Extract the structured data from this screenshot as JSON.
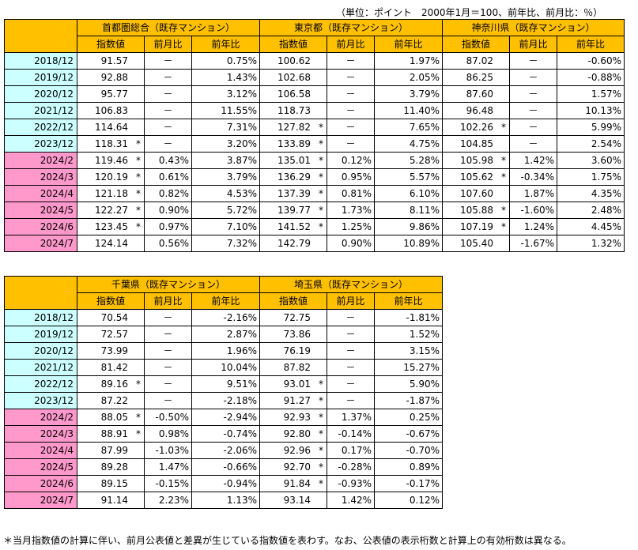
{
  "unit_note": "（単位：ポイント　2000年1月＝100、前年比、前月比：％）",
  "sub_headers": [
    "指数値",
    "前月比",
    "前年比"
  ],
  "table1": {
    "regions": [
      "首都圏総合（既存マンション）",
      "東京都（既存マンション）",
      "神奈川県（既存マンション）"
    ],
    "rows": [
      {
        "label": "2018/12",
        "type": "annual",
        "cells": [
          [
            "91.57",
            "",
            "－",
            "0.75%"
          ],
          [
            "100.62",
            "",
            "－",
            "1.97%"
          ],
          [
            "87.02",
            "",
            "－",
            "-0.60%"
          ]
        ]
      },
      {
        "label": "2019/12",
        "type": "annual",
        "cells": [
          [
            "92.88",
            "",
            "－",
            "1.43%"
          ],
          [
            "102.68",
            "",
            "－",
            "2.05%"
          ],
          [
            "86.25",
            "",
            "－",
            "-0.88%"
          ]
        ]
      },
      {
        "label": "2020/12",
        "type": "annual",
        "cells": [
          [
            "95.77",
            "",
            "－",
            "3.12%"
          ],
          [
            "106.58",
            "",
            "－",
            "3.79%"
          ],
          [
            "87.60",
            "",
            "－",
            "1.57%"
          ]
        ]
      },
      {
        "label": "2021/12",
        "type": "annual",
        "cells": [
          [
            "106.83",
            "",
            "－",
            "11.55%"
          ],
          [
            "118.73",
            "",
            "－",
            "11.40%"
          ],
          [
            "96.48",
            "",
            "－",
            "10.13%"
          ]
        ]
      },
      {
        "label": "2022/12",
        "type": "annual",
        "cells": [
          [
            "114.64",
            "",
            "－",
            "7.31%"
          ],
          [
            "127.82",
            "*",
            "－",
            "7.65%"
          ],
          [
            "102.26",
            "*",
            "－",
            "5.99%"
          ]
        ]
      },
      {
        "label": "2023/12",
        "type": "annual",
        "cells": [
          [
            "118.31",
            "*",
            "－",
            "3.20%"
          ],
          [
            "133.89",
            "*",
            "－",
            "4.75%"
          ],
          [
            "104.85",
            "",
            "－",
            "2.54%"
          ]
        ]
      },
      {
        "label": "2024/2",
        "type": "monthly",
        "cells": [
          [
            "119.46",
            "*",
            "0.43%",
            "3.87%"
          ],
          [
            "135.01",
            "*",
            "0.12%",
            "5.28%"
          ],
          [
            "105.98",
            "*",
            "1.42%",
            "3.60%"
          ]
        ]
      },
      {
        "label": "2024/3",
        "type": "monthly",
        "cells": [
          [
            "120.19",
            "*",
            "0.61%",
            "3.79%"
          ],
          [
            "136.29",
            "*",
            "0.95%",
            "5.57%"
          ],
          [
            "105.62",
            "*",
            "-0.34%",
            "1.75%"
          ]
        ]
      },
      {
        "label": "2024/4",
        "type": "monthly",
        "cells": [
          [
            "121.18",
            "*",
            "0.82%",
            "4.53%"
          ],
          [
            "137.39",
            "*",
            "0.81%",
            "6.10%"
          ],
          [
            "107.60",
            "",
            "1.87%",
            "4.35%"
          ]
        ]
      },
      {
        "label": "2024/5",
        "type": "monthly",
        "cells": [
          [
            "122.27",
            "*",
            "0.90%",
            "5.72%"
          ],
          [
            "139.77",
            "*",
            "1.73%",
            "8.11%"
          ],
          [
            "105.88",
            "*",
            "-1.60%",
            "2.48%"
          ]
        ]
      },
      {
        "label": "2024/6",
        "type": "monthly",
        "cells": [
          [
            "123.45",
            "*",
            "0.97%",
            "7.10%"
          ],
          [
            "141.52",
            "*",
            "1.25%",
            "9.86%"
          ],
          [
            "107.19",
            "*",
            "1.24%",
            "4.45%"
          ]
        ]
      },
      {
        "label": "2024/7",
        "type": "monthly",
        "cells": [
          [
            "124.14",
            "",
            "0.56%",
            "7.32%"
          ],
          [
            "142.79",
            "",
            "0.90%",
            "10.89%"
          ],
          [
            "105.40",
            "",
            "-1.67%",
            "1.32%"
          ]
        ]
      }
    ]
  },
  "table2": {
    "regions": [
      "千葉県（既存マンション）",
      "埼玉県（既存マンション）"
    ],
    "rows": [
      {
        "label": "2018/12",
        "type": "annual",
        "cells": [
          [
            "70.54",
            "",
            "－",
            "-2.16%"
          ],
          [
            "72.75",
            "",
            "－",
            "-1.81%"
          ]
        ]
      },
      {
        "label": "2019/12",
        "type": "annual",
        "cells": [
          [
            "72.57",
            "",
            "－",
            "2.87%"
          ],
          [
            "73.86",
            "",
            "－",
            "1.52%"
          ]
        ]
      },
      {
        "label": "2020/12",
        "type": "annual",
        "cells": [
          [
            "73.99",
            "",
            "－",
            "1.96%"
          ],
          [
            "76.19",
            "",
            "－",
            "3.15%"
          ]
        ]
      },
      {
        "label": "2021/12",
        "type": "annual",
        "cells": [
          [
            "81.42",
            "",
            "－",
            "10.04%"
          ],
          [
            "87.82",
            "",
            "－",
            "15.27%"
          ]
        ]
      },
      {
        "label": "2022/12",
        "type": "annual",
        "cells": [
          [
            "89.16",
            "*",
            "－",
            "9.51%"
          ],
          [
            "93.01",
            "*",
            "－",
            "5.90%"
          ]
        ]
      },
      {
        "label": "2023/12",
        "type": "annual",
        "cells": [
          [
            "87.22",
            "",
            "－",
            "-2.18%"
          ],
          [
            "91.27",
            "*",
            "－",
            "-1.87%"
          ]
        ]
      },
      {
        "label": "2024/2",
        "type": "monthly",
        "cells": [
          [
            "88.05",
            "*",
            "-0.50%",
            "-2.94%"
          ],
          [
            "92.93",
            "*",
            "1.37%",
            "0.25%"
          ]
        ]
      },
      {
        "label": "2024/3",
        "type": "monthly",
        "cells": [
          [
            "88.91",
            "*",
            "0.98%",
            "-0.74%"
          ],
          [
            "92.80",
            "*",
            "-0.14%",
            "-0.67%"
          ]
        ]
      },
      {
        "label": "2024/4",
        "type": "monthly",
        "cells": [
          [
            "87.99",
            "",
            "-1.03%",
            "-2.06%"
          ],
          [
            "92.96",
            "*",
            "0.17%",
            "-0.70%"
          ]
        ]
      },
      {
        "label": "2024/5",
        "type": "monthly",
        "cells": [
          [
            "89.28",
            "",
            "1.47%",
            "-0.66%"
          ],
          [
            "92.70",
            "*",
            "-0.28%",
            "0.89%"
          ]
        ]
      },
      {
        "label": "2024/6",
        "type": "monthly",
        "cells": [
          [
            "89.15",
            "",
            "-0.15%",
            "-0.94%"
          ],
          [
            "91.84",
            "*",
            "-0.93%",
            "-0.17%"
          ]
        ]
      },
      {
        "label": "2024/7",
        "type": "monthly",
        "cells": [
          [
            "91.14",
            "",
            "2.23%",
            "1.13%"
          ],
          [
            "93.14",
            "",
            "1.42%",
            "0.12%"
          ]
        ]
      }
    ]
  },
  "footnote": "＊当月指数値の計算に伴い、前月公表値と差異が生じている指数値を表わす。なお、公表値の表示桁数と計算上の有効桁数は異なる。",
  "colors": {
    "header": "#ffc000",
    "annual_row": "#ccffff",
    "monthly_row": "#ff99cc"
  }
}
